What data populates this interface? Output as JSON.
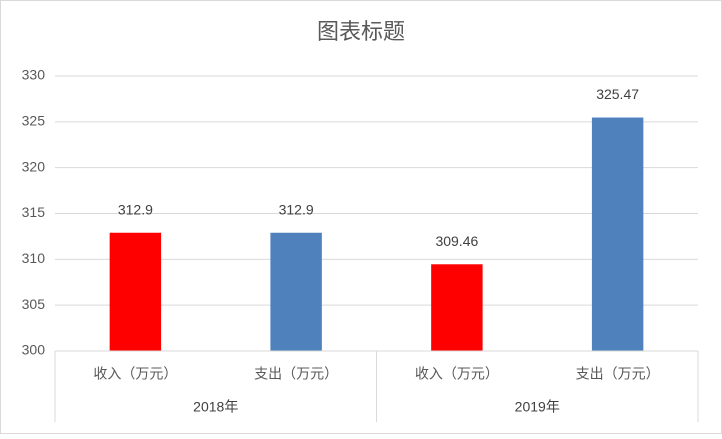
{
  "chart_data": {
    "type": "bar",
    "title": "图表标题",
    "groups": [
      {
        "name": "2018年",
        "categories": [
          "收入（万元）",
          "支出（万元）"
        ],
        "values": [
          312.9,
          312.9
        ],
        "colors": [
          "#ff0000",
          "#4f81bd"
        ]
      },
      {
        "name": "2019年",
        "categories": [
          "收入（万元）",
          "支出（万元）"
        ],
        "values": [
          309.46,
          325.47
        ],
        "colors": [
          "#ff0000",
          "#4f81bd"
        ]
      }
    ],
    "ylim": [
      300,
      330
    ],
    "yticks": [
      300,
      305,
      310,
      315,
      320,
      325,
      330
    ],
    "grid": true,
    "data_labels": true
  }
}
